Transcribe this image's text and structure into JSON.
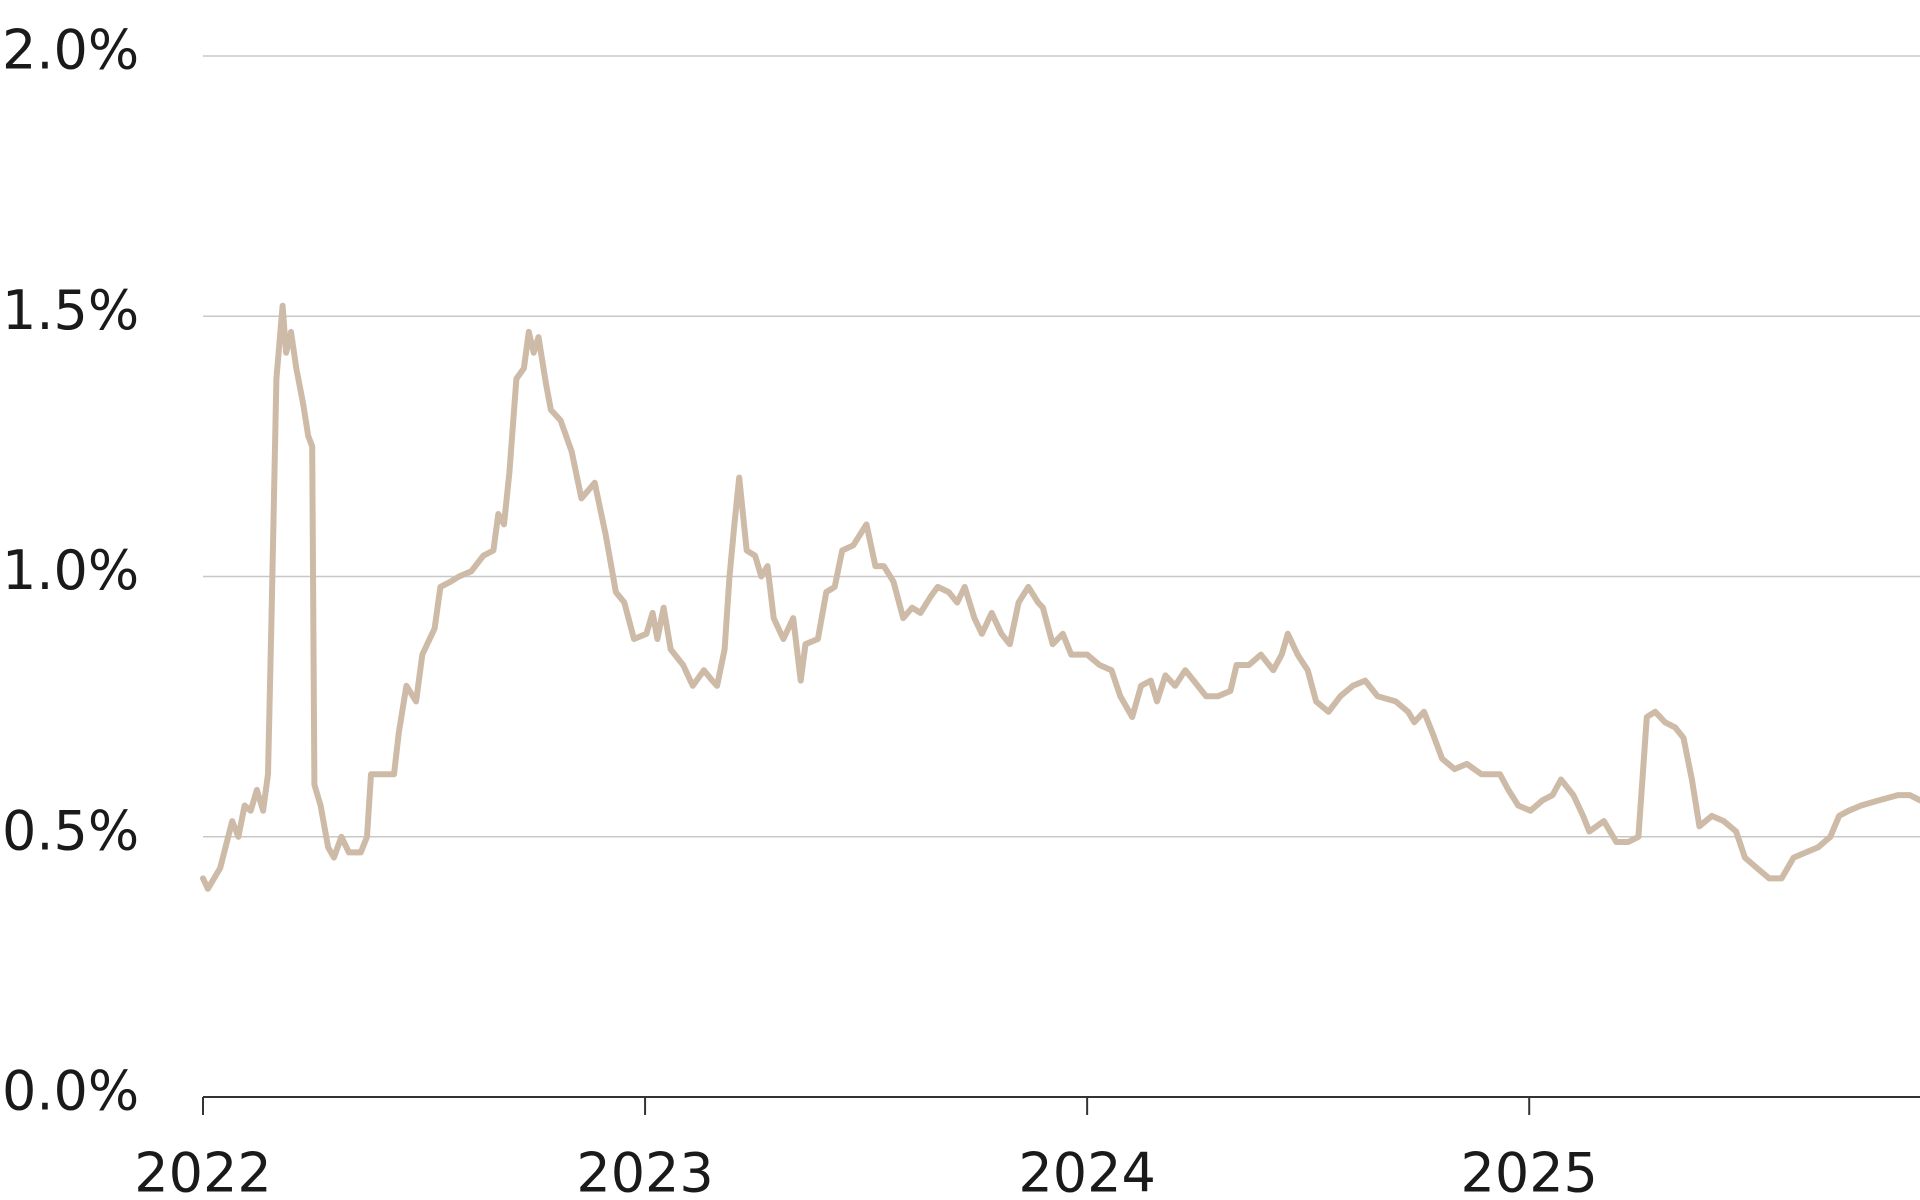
{
  "chart_data": {
    "type": "line",
    "color": "#cdbba8",
    "grid": true,
    "xlim": [
      2022,
      2025.884
    ],
    "xticks": [
      2022,
      2023,
      2024,
      2025
    ],
    "ylim": [
      0,
      2
    ],
    "yticks": [
      {
        "value": 0,
        "label": "0.0%"
      },
      {
        "value": 0.5,
        "label": "0.5%"
      },
      {
        "value": 1,
        "label": "1.0%"
      },
      {
        "value": 1.5,
        "label": "1.5%"
      },
      {
        "value": 2,
        "label": "2.0%"
      }
    ],
    "x": [
      2022.0,
      2022.011,
      2022.039,
      2022.066,
      2022.08,
      2022.094,
      2022.108,
      2022.122,
      2022.136,
      2022.147,
      2022.155,
      2022.166,
      2022.18,
      2022.188,
      2022.199,
      2022.211,
      2022.227,
      2022.238,
      2022.247,
      2022.252,
      2022.266,
      2022.283,
      2022.296,
      2022.313,
      2022.33,
      2022.357,
      2022.371,
      2022.38,
      2022.413,
      2022.432,
      2022.443,
      2022.46,
      2022.482,
      2022.496,
      2022.524,
      2022.537,
      2022.56,
      2022.579,
      2022.607,
      2022.634,
      2022.657,
      2022.668,
      2022.681,
      2022.693,
      2022.709,
      2022.726,
      2022.737,
      2022.748,
      2022.759,
      2022.776,
      2022.787,
      2022.809,
      2022.834,
      2022.856,
      2022.886,
      2022.911,
      2022.934,
      2022.953,
      2022.975,
      2023.003,
      2023.017,
      2023.028,
      2023.042,
      2023.058,
      2023.086,
      2023.108,
      2023.133,
      2023.152,
      2023.163,
      2023.18,
      2023.191,
      2023.202,
      2023.213,
      2023.23,
      2023.249,
      2023.263,
      2023.277,
      2023.291,
      2023.313,
      2023.335,
      2023.352,
      2023.363,
      2023.391,
      2023.41,
      2023.429,
      2023.446,
      2023.471,
      2023.501,
      2023.521,
      2023.54,
      2023.562,
      2023.584,
      2023.604,
      2023.623,
      2023.645,
      2023.662,
      2023.687,
      2023.706,
      2023.723,
      2023.745,
      2023.762,
      2023.784,
      2023.806,
      2023.825,
      2023.845,
      2023.867,
      2023.889,
      2023.9,
      2023.922,
      2023.945,
      2023.964,
      2024.0,
      2024.028,
      2024.055,
      2024.075,
      2024.102,
      2024.122,
      2024.144,
      2024.158,
      2024.177,
      2024.199,
      2024.222,
      2024.241,
      2024.269,
      2024.296,
      2024.324,
      2024.338,
      2024.366,
      2024.393,
      2024.421,
      2024.44,
      2024.454,
      2024.476,
      2024.499,
      2024.518,
      2024.546,
      2024.573,
      2024.601,
      2024.629,
      2024.657,
      2024.698,
      2024.726,
      2024.74,
      2024.762,
      2024.781,
      2024.803,
      2024.831,
      2024.859,
      2024.892,
      2024.934,
      2024.953,
      2024.975,
      2025.003,
      2025.03,
      2025.053,
      2025.072,
      2025.1,
      2025.122,
      2025.136,
      2025.169,
      2025.197,
      2025.224,
      2025.247,
      2025.266,
      2025.285,
      2025.307,
      2025.33,
      2025.349,
      2025.368,
      2025.385,
      2025.413,
      2025.44,
      2025.468,
      2025.488,
      2025.515,
      2025.543,
      2025.571,
      2025.598,
      2025.626,
      2025.654,
      2025.681,
      2025.701,
      2025.723,
      2025.751,
      2025.792,
      2025.834,
      2025.861,
      2025.884
    ],
    "values": [
      0.42,
      0.4,
      0.44,
      0.53,
      0.5,
      0.56,
      0.55,
      0.59,
      0.55,
      0.62,
      0.92,
      1.38,
      1.52,
      1.43,
      1.47,
      1.4,
      1.33,
      1.27,
      1.25,
      0.6,
      0.56,
      0.48,
      0.46,
      0.5,
      0.47,
      0.47,
      0.5,
      0.62,
      0.62,
      0.62,
      0.7,
      0.79,
      0.76,
      0.85,
      0.9,
      0.98,
      0.99,
      1.0,
      1.01,
      1.04,
      1.05,
      1.12,
      1.1,
      1.2,
      1.38,
      1.4,
      1.47,
      1.43,
      1.46,
      1.37,
      1.32,
      1.3,
      1.24,
      1.15,
      1.18,
      1.08,
      0.97,
      0.95,
      0.88,
      0.89,
      0.93,
      0.88,
      0.94,
      0.86,
      0.83,
      0.79,
      0.82,
      0.8,
      0.79,
      0.86,
      1.0,
      1.1,
      1.19,
      1.05,
      1.04,
      1.0,
      1.02,
      0.92,
      0.88,
      0.92,
      0.8,
      0.87,
      0.88,
      0.97,
      0.98,
      1.05,
      1.06,
      1.1,
      1.02,
      1.02,
      0.99,
      0.92,
      0.94,
      0.93,
      0.96,
      0.98,
      0.97,
      0.95,
      0.98,
      0.92,
      0.89,
      0.93,
      0.89,
      0.87,
      0.95,
      0.98,
      0.95,
      0.94,
      0.87,
      0.89,
      0.85,
      0.85,
      0.83,
      0.82,
      0.77,
      0.73,
      0.79,
      0.8,
      0.76,
      0.81,
      0.79,
      0.82,
      0.8,
      0.77,
      0.77,
      0.78,
      0.83,
      0.83,
      0.85,
      0.82,
      0.85,
      0.89,
      0.85,
      0.82,
      0.76,
      0.74,
      0.77,
      0.79,
      0.8,
      0.77,
      0.76,
      0.74,
      0.72,
      0.74,
      0.7,
      0.65,
      0.63,
      0.64,
      0.62,
      0.62,
      0.59,
      0.56,
      0.55,
      0.57,
      0.58,
      0.61,
      0.58,
      0.54,
      0.51,
      0.53,
      0.49,
      0.49,
      0.5,
      0.73,
      0.74,
      0.72,
      0.71,
      0.69,
      0.61,
      0.52,
      0.54,
      0.53,
      0.51,
      0.46,
      0.44,
      0.42,
      0.42,
      0.46,
      0.47,
      0.48,
      0.5,
      0.54,
      0.55,
      0.56,
      0.57,
      0.58,
      0.58,
      0.57
    ]
  }
}
